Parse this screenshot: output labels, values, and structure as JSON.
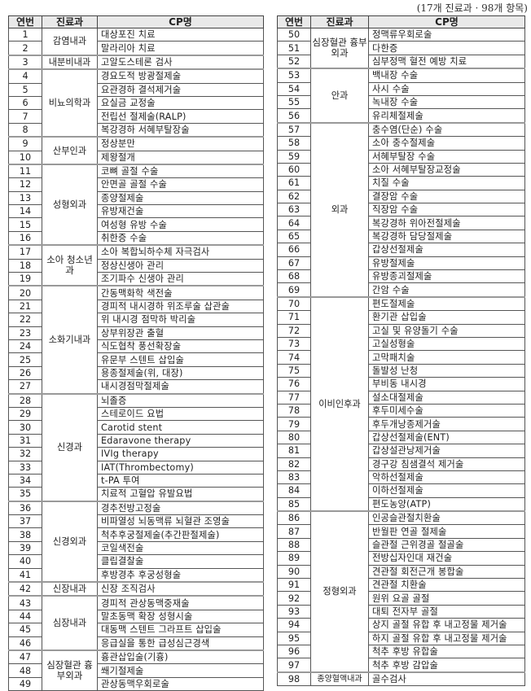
{
  "caption": "(17개 진료과 · 98개 항목)",
  "headers": {
    "no": "연번",
    "dept": "진료과",
    "cp": "CP명"
  },
  "left": [
    {
      "dept": "감염내과",
      "items": [
        [
          "1",
          "대상포진 치료"
        ],
        [
          "2",
          "말라리아 치료"
        ]
      ]
    },
    {
      "dept": "내분비내과",
      "items": [
        [
          "3",
          "고알도스테론 검사"
        ]
      ]
    },
    {
      "dept": "비뇨의학과",
      "items": [
        [
          "4",
          "경요도적 방광절제술"
        ],
        [
          "5",
          "요관경하 결석제거술"
        ],
        [
          "6",
          "요실금 교정술"
        ],
        [
          "7",
          "전립선 절제술(RALP)"
        ],
        [
          "8",
          "복강경하 서혜부탈장술"
        ]
      ]
    },
    {
      "dept": "산부인과",
      "items": [
        [
          "9",
          "정상분만"
        ],
        [
          "10",
          "제왕절개"
        ]
      ]
    },
    {
      "dept": "성형외과",
      "items": [
        [
          "11",
          "코뼈 골절 수술"
        ],
        [
          "12",
          "안면골 골절 수술"
        ],
        [
          "13",
          "종양절제술"
        ],
        [
          "14",
          "유방재건술"
        ],
        [
          "15",
          "여성형 유방 수술"
        ],
        [
          "16",
          "취한증 수술"
        ]
      ]
    },
    {
      "dept": "소아 청소년과",
      "items": [
        [
          "17",
          "소아 복합뇌하수체 자극검사"
        ],
        [
          "18",
          "정상신생아 관리"
        ],
        [
          "19",
          "조기파수 신생아 관리"
        ]
      ]
    },
    {
      "dept": "소화기내과",
      "items": [
        [
          "20",
          "간동맥화학 색전술"
        ],
        [
          "21",
          "경피적 내시경하 위조루술 삽관술"
        ],
        [
          "22",
          "위 내시경 점막하 박리술"
        ],
        [
          "23",
          "상부위장관 출혈"
        ],
        [
          "24",
          "식도협착 풍선확장술"
        ],
        [
          "25",
          "유문부 스텐트 삽입술"
        ],
        [
          "26",
          "용종절제술(위, 대장)"
        ],
        [
          "27",
          "내시경점막절제술"
        ]
      ]
    },
    {
      "dept": "신경과",
      "items": [
        [
          "28",
          "뇌졸증"
        ],
        [
          "29",
          "스테로이드 요법"
        ],
        [
          "30",
          "Carotid stent"
        ],
        [
          "31",
          "Edaravone therapy"
        ],
        [
          "32",
          "IVIg therapy"
        ],
        [
          "33",
          "IAT(Thrombectomy)"
        ],
        [
          "34",
          "t-PA 투여"
        ],
        [
          "35",
          "치료적 고혈압 유발요법"
        ]
      ]
    },
    {
      "dept": "신경외과",
      "items": [
        [
          "36",
          "경추전방고정술"
        ],
        [
          "37",
          "비파열성 뇌동맥류 뇌혈관 조영술"
        ],
        [
          "38",
          "척추후궁절제술(추간판절제술)"
        ],
        [
          "39",
          "코일색전술"
        ],
        [
          "40",
          "클립결찰술"
        ],
        [
          "41",
          "후방경추 후궁성형술"
        ]
      ]
    },
    {
      "dept": "신장내과",
      "items": [
        [
          "42",
          "신장 조직검사"
        ]
      ]
    },
    {
      "dept": "심장내과",
      "items": [
        [
          "43",
          "경피적 관상동맥중재술"
        ],
        [
          "44",
          "말초동맥 확장 성형시술"
        ],
        [
          "45",
          "대동맥 스텐트 그라프트 삽입술"
        ],
        [
          "46",
          "응급실을 통한 급성심근경색"
        ]
      ]
    },
    {
      "dept": "심장혈관 흉부외과",
      "items": [
        [
          "47",
          "흉관삽입술(기흉)"
        ],
        [
          "48",
          "쐐기절제술"
        ],
        [
          "49",
          "관상동맥우회로술"
        ]
      ]
    }
  ],
  "right": [
    {
      "dept": "심장혈관 흉부외과",
      "items": [
        [
          "50",
          "정맥류우회로술"
        ],
        [
          "51",
          "다한증"
        ],
        [
          "52",
          "심부정맥 혈전 예방 치료"
        ]
      ]
    },
    {
      "dept": "안과",
      "items": [
        [
          "53",
          "백내장 수술"
        ],
        [
          "54",
          "사시 수술"
        ],
        [
          "55",
          "녹내장 수술"
        ],
        [
          "56",
          "유리체절제술"
        ]
      ]
    },
    {
      "dept": "외과",
      "items": [
        [
          "57",
          "충수염(단순) 수술"
        ],
        [
          "58",
          "소아 충수절제술"
        ],
        [
          "59",
          "서혜부탈장 수술"
        ],
        [
          "60",
          "소아 서혜부탈장교정술"
        ],
        [
          "61",
          "치질 수술"
        ],
        [
          "62",
          "결장암 수술"
        ],
        [
          "63",
          "직장암 수술"
        ],
        [
          "64",
          "복강경하 위아전절제술"
        ],
        [
          "65",
          "복강경하 담당절제술"
        ],
        [
          "66",
          "갑상선절제술"
        ],
        [
          "67",
          "유방절제술"
        ],
        [
          "68",
          "유방종괴절제술"
        ],
        [
          "69",
          "간암 수술"
        ]
      ]
    },
    {
      "dept": "이비인후과",
      "items": [
        [
          "70",
          "편도절제술"
        ],
        [
          "71",
          "환기관 삽입술"
        ],
        [
          "72",
          "고실 및 유양돌기 수술"
        ],
        [
          "73",
          "고실성형술"
        ],
        [
          "74",
          "고막패치술"
        ],
        [
          "75",
          "돌발성 난청"
        ],
        [
          "76",
          "부비동 내시경"
        ],
        [
          "77",
          "설소대절제술"
        ],
        [
          "78",
          "후두미세수술"
        ],
        [
          "79",
          "후두개낭종제거술"
        ],
        [
          "80",
          "갑상선절제술(ENT)"
        ],
        [
          "81",
          "갑상설관낭제거술"
        ],
        [
          "82",
          "경구강 침샘결석 제거술"
        ],
        [
          "83",
          "악하선절제술"
        ],
        [
          "84",
          "이하선절제술"
        ],
        [
          "85",
          "편도농양(ATP)"
        ]
      ]
    },
    {
      "dept": "정형외과",
      "items": [
        [
          "86",
          "인공슬관절치환술"
        ],
        [
          "87",
          "반월판 연골 절제술"
        ],
        [
          "88",
          "슬관절 근위경골 절골술"
        ],
        [
          "89",
          "전방십자인대 재건술"
        ],
        [
          "90",
          "견관절 회전근개 봉합술"
        ],
        [
          "91",
          "견관절 치환술"
        ],
        [
          "92",
          "원위 요골 골절"
        ],
        [
          "93",
          "대퇴 전자부 골절"
        ],
        [
          "94",
          "상지 골절 유합 후 내고정물 제거술"
        ],
        [
          "95",
          "하지 골절 유합 후 내고정물 제거술"
        ],
        [
          "96",
          "척추 후방 유합술"
        ],
        [
          "97",
          "척추 후방 감압술"
        ]
      ]
    },
    {
      "dept": "종양혈액내과",
      "items": [
        [
          "98",
          "골수검사"
        ]
      ]
    }
  ]
}
